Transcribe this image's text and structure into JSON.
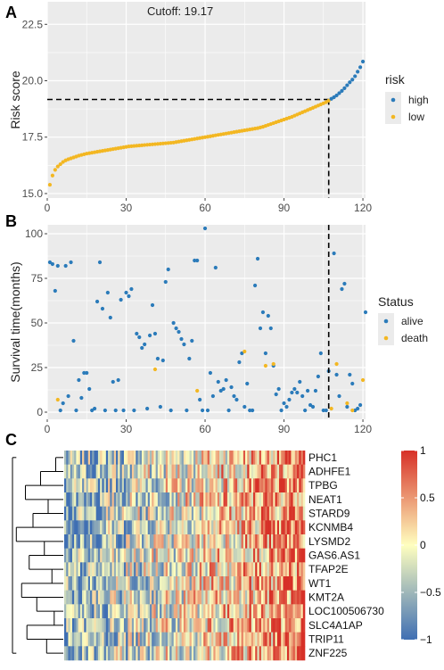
{
  "panels": {
    "a": "A",
    "b": "B",
    "c": "C"
  },
  "colors": {
    "high": "#2B7BBA",
    "low": "#F3B722",
    "alive": "#2B7BBA",
    "death": "#F3B722",
    "panel_bg": "#EBEBEB",
    "grid": "#FFFFFF",
    "heat_low": "#3F6FB3",
    "heat_mid": "#FFFFBF",
    "heat_high": "#D73027"
  },
  "chart_data": [
    {
      "type": "scatter",
      "panel": "A",
      "annotation": "Cutoff: 19.17",
      "cutoff_y": 19.17,
      "cutoff_x": 107,
      "xlabel": "",
      "ylabel": "Risk score",
      "xlim": [
        0,
        121
      ],
      "ylim": [
        15,
        21
      ],
      "xticks": [
        "0",
        "30",
        "60",
        "90",
        "120"
      ],
      "xtick_values": [
        0,
        30,
        60,
        90,
        120
      ],
      "yticks": [
        "15.0",
        "17.5",
        "20.0",
        "22.5"
      ],
      "ytick_values": [
        15.0,
        17.5,
        20.0,
        22.5
      ],
      "ydomain": [
        14.8,
        23.5
      ],
      "legend": {
        "title": "risk",
        "entries": [
          "high",
          "low"
        ],
        "position": "right"
      },
      "series": [
        {
          "name": "low",
          "x_start": 1,
          "values": [
            15.39,
            15.8,
            16.05,
            16.2,
            16.3,
            16.4,
            16.47,
            16.52,
            16.56,
            16.6,
            16.64,
            16.68,
            16.71,
            16.74,
            16.77,
            16.79,
            16.81,
            16.83,
            16.85,
            16.87,
            16.89,
            16.91,
            16.93,
            16.95,
            16.97,
            16.99,
            17.01,
            17.03,
            17.05,
            17.07,
            17.09,
            17.1,
            17.11,
            17.12,
            17.13,
            17.14,
            17.15,
            17.16,
            17.17,
            17.18,
            17.19,
            17.2,
            17.21,
            17.22,
            17.23,
            17.24,
            17.25,
            17.26,
            17.28,
            17.3,
            17.32,
            17.34,
            17.36,
            17.38,
            17.4,
            17.42,
            17.44,
            17.46,
            17.48,
            17.5,
            17.52,
            17.54,
            17.56,
            17.58,
            17.6,
            17.62,
            17.64,
            17.66,
            17.68,
            17.7,
            17.72,
            17.74,
            17.76,
            17.78,
            17.8,
            17.82,
            17.84,
            17.86,
            17.88,
            17.9,
            17.93,
            17.96,
            18.0,
            18.04,
            18.08,
            18.12,
            18.16,
            18.2,
            18.24,
            18.28,
            18.32,
            18.36,
            18.4,
            18.45,
            18.5,
            18.55,
            18.6,
            18.65,
            18.7,
            18.75,
            18.8,
            18.85,
            18.9,
            18.95,
            19.0,
            19.05,
            19.12
          ]
        },
        {
          "name": "high",
          "x_start": 108,
          "values": [
            19.2,
            19.27,
            19.35,
            19.45,
            19.55,
            19.67,
            19.8,
            19.93,
            20.05,
            20.2,
            20.4,
            20.6,
            20.85
          ]
        }
      ]
    },
    {
      "type": "scatter",
      "panel": "B",
      "xlabel": "",
      "ylabel": "Survival time(months)",
      "xlim": [
        0,
        121
      ],
      "ylim": [
        -4,
        105
      ],
      "cutoff_x": 107,
      "xticks": [
        "0",
        "30",
        "60",
        "90",
        "120"
      ],
      "xtick_values": [
        0,
        30,
        60,
        90,
        120
      ],
      "yticks": [
        "0",
        "25",
        "50",
        "75",
        "100"
      ],
      "ytick_values": [
        0,
        25,
        50,
        75,
        100
      ],
      "legend": {
        "title": "Status",
        "entries": [
          "alive",
          "death"
        ],
        "position": "right"
      },
      "series": [
        {
          "name": "alive",
          "points": [
            [
              1,
              84
            ],
            [
              2,
              83
            ],
            [
              3,
              68
            ],
            [
              4,
              82
            ],
            [
              5,
              1
            ],
            [
              6,
              5
            ],
            [
              7,
              82
            ],
            [
              8,
              9
            ],
            [
              9,
              84
            ],
            [
              10,
              40
            ],
            [
              11,
              1
            ],
            [
              12,
              18
            ],
            [
              13,
              8
            ],
            [
              14,
              22
            ],
            [
              15,
              22
            ],
            [
              16,
              13
            ],
            [
              17,
              1
            ],
            [
              18,
              2
            ],
            [
              19,
              62
            ],
            [
              20,
              84
            ],
            [
              21,
              58
            ],
            [
              22,
              1
            ],
            [
              23,
              67
            ],
            [
              24,
              53
            ],
            [
              25,
              17
            ],
            [
              26,
              1
            ],
            [
              27,
              18
            ],
            [
              28,
              63
            ],
            [
              29,
              1
            ],
            [
              30,
              67
            ],
            [
              31,
              65
            ],
            [
              32,
              69
            ],
            [
              33,
              1
            ],
            [
              34,
              44
            ],
            [
              35,
              42
            ],
            [
              36,
              36
            ],
            [
              37,
              38
            ],
            [
              38,
              2
            ],
            [
              39,
              43
            ],
            [
              40,
              60
            ],
            [
              41,
              44
            ],
            [
              42,
              30
            ],
            [
              43,
              3
            ],
            [
              44,
              29
            ],
            [
              45,
              73
            ],
            [
              46,
              80
            ],
            [
              47,
              1
            ],
            [
              48,
              50
            ],
            [
              49,
              47
            ],
            [
              50,
              45
            ],
            [
              51,
              41
            ],
            [
              52,
              38
            ],
            [
              53,
              1
            ],
            [
              54,
              30
            ],
            [
              55,
              40
            ],
            [
              56,
              85
            ],
            [
              57,
              85
            ],
            [
              58,
              7
            ],
            [
              59,
              1
            ],
            [
              60,
              103
            ],
            [
              61,
              1
            ],
            [
              62,
              22
            ],
            [
              63,
              9
            ],
            [
              64,
              81
            ],
            [
              65,
              17
            ],
            [
              66,
              12
            ],
            [
              67,
              13
            ],
            [
              68,
              18
            ],
            [
              69,
              1
            ],
            [
              70,
              14
            ],
            [
              71,
              9
            ],
            [
              72,
              7
            ],
            [
              73,
              28
            ],
            [
              74,
              33
            ],
            [
              75,
              3
            ],
            [
              76,
              16
            ],
            [
              77,
              1
            ],
            [
              78,
              1
            ],
            [
              79,
              71
            ],
            [
              80,
              86
            ],
            [
              81,
              47
            ],
            [
              82,
              56
            ],
            [
              83,
              33
            ],
            [
              84,
              54
            ],
            [
              85,
              47
            ],
            [
              86,
              26
            ],
            [
              87,
              10
            ],
            [
              88,
              13
            ],
            [
              89,
              1
            ],
            [
              90,
              5
            ],
            [
              91,
              3
            ],
            [
              92,
              7
            ],
            [
              93,
              11
            ],
            [
              94,
              13
            ],
            [
              95,
              11
            ],
            [
              96,
              17
            ],
            [
              97,
              9
            ],
            [
              98,
              1
            ],
            [
              99,
              12
            ],
            [
              100,
              4
            ],
            [
              101,
              3
            ],
            [
              102,
              12
            ],
            [
              103,
              20
            ],
            [
              104,
              33
            ],
            [
              105,
              1
            ],
            [
              106,
              1
            ],
            [
              107,
              23
            ],
            [
              109,
              89
            ],
            [
              110,
              21
            ],
            [
              111,
              9
            ],
            [
              112,
              69
            ],
            [
              113,
              72
            ],
            [
              114,
              3
            ],
            [
              115,
              21
            ],
            [
              116,
              16
            ],
            [
              117,
              1
            ],
            [
              118,
              2
            ],
            [
              119,
              4
            ],
            [
              121,
              56
            ]
          ]
        },
        {
          "name": "death",
          "points": [
            [
              4,
              7
            ],
            [
              41,
              24
            ],
            [
              57,
              12
            ],
            [
              75,
              34
            ],
            [
              83,
              26
            ],
            [
              86,
              27
            ],
            [
              108,
              2
            ],
            [
              110,
              27
            ],
            [
              114,
              5
            ],
            [
              116,
              1
            ],
            [
              120,
              18
            ]
          ]
        }
      ]
    },
    {
      "type": "heatmap",
      "panel": "C",
      "rows": [
        "PHC1",
        "ADHFE1",
        "TPBG",
        "NEAT1",
        "STARD9",
        "KCNMB4",
        "LYSMD2",
        "GAS6.AS1",
        "TFAP2E",
        "WT1",
        "KMT2A",
        "LOC100506730",
        "SLC4A1AP",
        "TRIP11",
        "ZNF225"
      ],
      "columns": 121,
      "value_range": [
        -1,
        1
      ],
      "colorbar_ticks": [
        "1",
        "0.5",
        "0",
        "−0.5",
        "−1"
      ],
      "colorbar_values": [
        1,
        0.5,
        0,
        -0.5,
        -1
      ],
      "dendrogram": "rows"
    }
  ]
}
